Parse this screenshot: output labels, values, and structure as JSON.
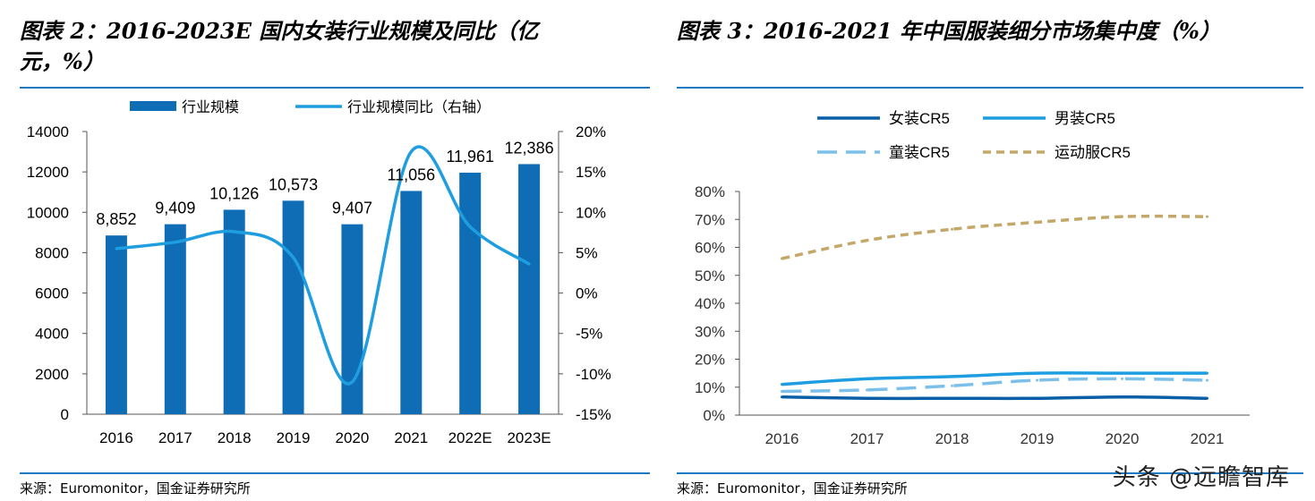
{
  "left": {
    "title": "图表 2：2016-2023E 国内女装行业规模及同比（亿元，%）",
    "title_line1": "图表 2：2016-2023E 国内女装行业规模及同比（亿",
    "title_line2": "元，%）",
    "source": "来源：Euromonitor，国金证券研究所"
  },
  "right": {
    "title": "图表 3：2016-2021 年中国服装细分市场集中度（%）",
    "source": "来源：Euromonitor，国金证券研究所"
  },
  "watermark": "头条 @远瞻智库",
  "chart_data": [
    {
      "type": "bar",
      "categories": [
        "2016",
        "2017",
        "2018",
        "2019",
        "2020",
        "2021",
        "2022E",
        "2023E"
      ],
      "series": [
        {
          "name": "行业规模",
          "type": "bar",
          "axis": "left",
          "values": [
            8852,
            9409,
            10126,
            10573,
            9407,
            11056,
            11961,
            12386
          ],
          "labels": [
            "8,852",
            "9,409",
            "10,126",
            "10,573",
            "9,407",
            "11,056",
            "11,961",
            "12,386"
          ],
          "color": "#0f6db6"
        },
        {
          "name": "行业规模同比（右轴）",
          "type": "line",
          "axis": "right",
          "values": [
            5.5,
            6.3,
            7.6,
            4.4,
            -11.0,
            17.5,
            8.2,
            3.6
          ],
          "color": "#1e9ee0"
        }
      ],
      "y_left": {
        "min": 0,
        "max": 14000,
        "ticks": [
          "0",
          "2000",
          "4000",
          "6000",
          "8000",
          "10000",
          "12000",
          "14000"
        ]
      },
      "y_right": {
        "min": -15,
        "max": 20,
        "ticks": [
          "-15%",
          "-10%",
          "-5%",
          "0%",
          "5%",
          "10%",
          "15%",
          "20%"
        ]
      },
      "legend_position": "top"
    },
    {
      "type": "line",
      "categories": [
        "2016",
        "2017",
        "2018",
        "2019",
        "2020",
        "2021"
      ],
      "series": [
        {
          "name": "女装CR5",
          "values": [
            6.5,
            6.0,
            6.0,
            6.0,
            6.5,
            6.0
          ],
          "color": "#0a5fa7",
          "dash": "solid"
        },
        {
          "name": "男装CR5",
          "values": [
            11.0,
            13.0,
            13.8,
            15.0,
            15.0,
            15.0
          ],
          "color": "#1e9ee0",
          "dash": "solid"
        },
        {
          "name": "童装CR5",
          "values": [
            8.5,
            9.0,
            10.5,
            12.5,
            13.0,
            12.5
          ],
          "color": "#7cc0ea",
          "dash": "long-dash"
        },
        {
          "name": "运动服CR5",
          "values": [
            56.0,
            62.5,
            66.5,
            69.0,
            71.0,
            71.0
          ],
          "color": "#c4a86a",
          "dash": "dotted"
        }
      ],
      "y": {
        "min": 0,
        "max": 80,
        "ticks": [
          "0%",
          "10%",
          "20%",
          "30%",
          "40%",
          "50%",
          "60%",
          "70%",
          "80%"
        ]
      },
      "legend_position": "top"
    }
  ]
}
